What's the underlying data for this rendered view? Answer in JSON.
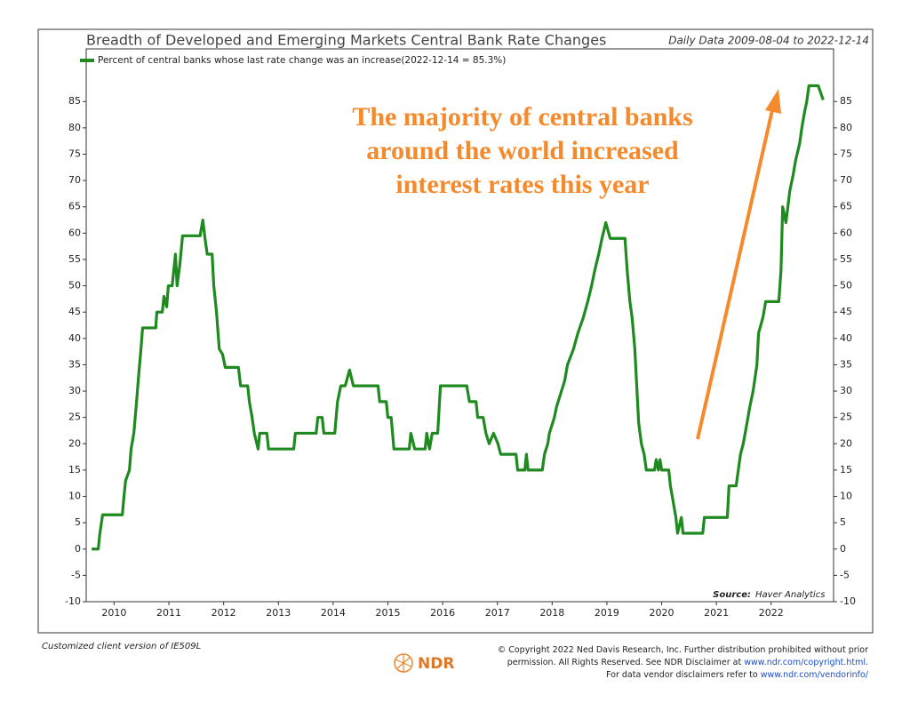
{
  "chart_data": {
    "type": "line",
    "title": "Breadth of Developed and Emerging Markets Central Bank Rate Changes",
    "subtitle": "Daily Data 2009-08-04 to 2022-12-14",
    "annotation": [
      "The majority of central banks",
      "around the world increased",
      "interest rates this year"
    ],
    "source_label": "Source:",
    "source": "Haver Analytics",
    "x": [
      2009.59,
      2009.71,
      2009.74,
      2009.79,
      2010.15,
      2010.18,
      2010.21,
      2010.28,
      2010.31,
      2010.36,
      2010.41,
      2010.44,
      2010.49,
      2010.52,
      2010.76,
      2010.78,
      2010.88,
      2010.91,
      2010.96,
      2010.99,
      2011.06,
      2011.12,
      2011.15,
      2011.2,
      2011.25,
      2011.57,
      2011.62,
      2011.66,
      2011.7,
      2011.79,
      2011.82,
      2011.87,
      2011.92,
      2011.98,
      2012.03,
      2012.27,
      2012.31,
      2012.44,
      2012.47,
      2012.52,
      2012.56,
      2012.63,
      2012.66,
      2012.79,
      2012.82,
      2013.28,
      2013.31,
      2013.69,
      2013.72,
      2013.8,
      2013.83,
      2014.03,
      2014.08,
      2014.14,
      2014.22,
      2014.3,
      2014.37,
      2014.82,
      2014.85,
      2014.97,
      2015.0,
      2015.06,
      2015.11,
      2015.39,
      2015.42,
      2015.49,
      2015.68,
      2015.71,
      2015.76,
      2015.81,
      2015.91,
      2015.96,
      2016.44,
      2016.49,
      2016.61,
      2016.64,
      2016.74,
      2016.79,
      2016.85,
      2016.93,
      2017.01,
      2017.06,
      2017.34,
      2017.37,
      2017.5,
      2017.53,
      2017.56,
      2017.82,
      2017.86,
      2017.92,
      2017.95,
      2018.04,
      2018.08,
      2018.17,
      2018.23,
      2018.28,
      2018.39,
      2018.47,
      2018.57,
      2018.65,
      2018.72,
      2018.78,
      2018.85,
      2018.91,
      2018.98,
      2019.06,
      2019.33,
      2019.37,
      2019.42,
      2019.46,
      2019.51,
      2019.55,
      2019.58,
      2019.63,
      2019.68,
      2019.72,
      2019.87,
      2019.9,
      2019.94,
      2019.97,
      2020.0,
      2020.13,
      2020.16,
      2020.21,
      2020.26,
      2020.29,
      2020.36,
      2020.39,
      2020.75,
      2020.78,
      2021.2,
      2021.23,
      2021.36,
      2021.4,
      2021.44,
      2021.49,
      2021.56,
      2021.61,
      2021.67,
      2021.74,
      2021.77,
      2021.85,
      2021.9,
      2022.14,
      2022.18,
      2022.21,
      2022.27,
      2022.34,
      2022.4,
      2022.45,
      2022.52,
      2022.56,
      2022.61,
      2022.65,
      2022.69,
      2022.86,
      2022.95
    ],
    "series": [
      {
        "name": "Percent of central banks whose last rate change was an increase(2022-12-14 = 85.3%)",
        "color": "#1f8a1f",
        "values": [
          0,
          0,
          3,
          6.5,
          6.5,
          10,
          13,
          15,
          19,
          22,
          28,
          32,
          38,
          42,
          42,
          45,
          45,
          48,
          46,
          50,
          50,
          56,
          50,
          54,
          59.5,
          59.5,
          62.5,
          59,
          56,
          56,
          50,
          45,
          38,
          37,
          34.5,
          34.5,
          31,
          31,
          28,
          25,
          22,
          19,
          22,
          22,
          19,
          19,
          22,
          22,
          25,
          25,
          22,
          22,
          28,
          31,
          31,
          34,
          31,
          31,
          28,
          28,
          25,
          25,
          19,
          19,
          22,
          19,
          19,
          22,
          19,
          22,
          22,
          31,
          31,
          28,
          28,
          25,
          25,
          22,
          20,
          22,
          20,
          18,
          18,
          15,
          15,
          18,
          15,
          15,
          18,
          20,
          22,
          25,
          27,
          30,
          32,
          35,
          38,
          41,
          44,
          47,
          50,
          53,
          56,
          59,
          62,
          59,
          59,
          53,
          47,
          44,
          38,
          30,
          24,
          20,
          18,
          15,
          15,
          17,
          15,
          17,
          15,
          15,
          12,
          9,
          6,
          3,
          6,
          3,
          3,
          6,
          6,
          12,
          12,
          15,
          18,
          20,
          24,
          27,
          30,
          35,
          41,
          44,
          47,
          47,
          53,
          65,
          62,
          68,
          71,
          74,
          77,
          80,
          83,
          85,
          88,
          88,
          85.3
        ]
      }
    ],
    "xlim": [
      2009.49,
      2023.14
    ],
    "xticks": [
      2010,
      2011,
      2012,
      2013,
      2014,
      2015,
      2016,
      2017,
      2018,
      2019,
      2020,
      2021,
      2022
    ],
    "ylim": [
      -10,
      95
    ],
    "yticks": [
      -10,
      -5,
      0,
      5,
      10,
      15,
      20,
      25,
      30,
      35,
      40,
      45,
      50,
      55,
      60,
      65,
      70,
      75,
      80,
      85
    ]
  },
  "footer": {
    "client_note": "Customized client version of IE509L",
    "logo": "NDR",
    "copyright": [
      [
        "© Copyright 2022 Ned Davis Research, Inc. Further distribution prohibited without prior"
      ],
      [
        "permission. All Rights Reserved. See NDR Disclaimer at ",
        "www.ndr.com/copyright.html."
      ],
      [
        "For data vendor disclaimers refer to ",
        "www.ndr.com/vendorinfo/"
      ]
    ]
  }
}
